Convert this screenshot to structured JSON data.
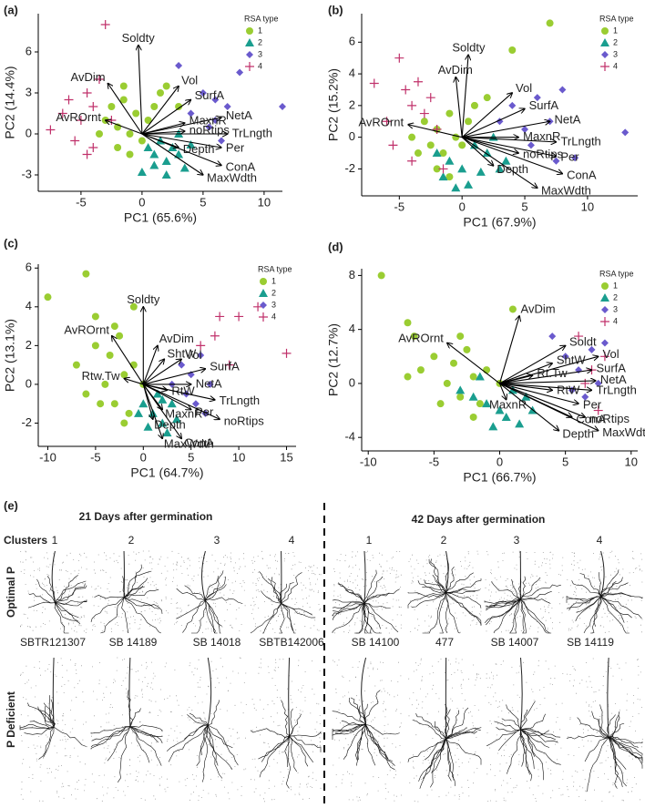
{
  "chart_data": [
    {
      "type": "biplot",
      "panel": "(a)",
      "xlabel": "PC1 (65.6%)",
      "ylabel": "PC2 (14.4%)",
      "legend_title": "RSA type",
      "xlim": [
        -8.5,
        11.5
      ],
      "ylim": [
        -4.2,
        8.8
      ],
      "xticks": [
        -5,
        0,
        5,
        10
      ],
      "yticks": [
        -3,
        0,
        3,
        6
      ],
      "series": [
        {
          "name": "1",
          "color": "#9acd32",
          "marker": "circle",
          "x": [
            -3,
            -2.5,
            -2,
            -1.5,
            -1,
            -0.5,
            0,
            0.5,
            1,
            1.5,
            -2,
            -1,
            2,
            3,
            -3.5,
            -1.5
          ],
          "values": [
            1,
            2,
            0.5,
            2.5,
            0,
            1.5,
            -0.5,
            1,
            2,
            3,
            -1,
            -1.5,
            3.5,
            2,
            0,
            3.5
          ]
        },
        {
          "name": "2",
          "color": "#1a9e8f",
          "marker": "triangle",
          "x": [
            0.5,
            1,
            1.5,
            2,
            2.5,
            3,
            3.5,
            4,
            1,
            2,
            0,
            3
          ],
          "values": [
            -1,
            -1.5,
            -0.5,
            -2,
            -1,
            -1.5,
            -2.5,
            -0.8,
            -2.3,
            -3,
            -2.8,
            0
          ]
        },
        {
          "name": "3",
          "color": "#6a5acd",
          "marker": "diamond",
          "x": [
            4,
            5,
            6,
            5.5,
            7,
            6.5,
            8,
            11.5,
            3,
            6
          ],
          "values": [
            1.5,
            3,
            2.5,
            0.5,
            2,
            -0.5,
            4.5,
            2,
            5,
            1
          ]
        },
        {
          "name": "4",
          "color": "#c0306a",
          "marker": "plus",
          "x": [
            -7.5,
            -6,
            -5,
            -4.5,
            -4,
            -3.5,
            -3,
            -5.5,
            -4,
            -6.5,
            -4.5,
            -2.5
          ],
          "values": [
            0.3,
            2.5,
            1,
            3,
            -1,
            4,
            8,
            -0.5,
            2,
            1.5,
            -1.5,
            1
          ]
        }
      ],
      "arrows": [
        {
          "label": "Soldty",
          "x": -0.3,
          "y": 6.5
        },
        {
          "label": "AvDim",
          "x": -2.8,
          "y": 3.7
        },
        {
          "label": "AvROrnt",
          "x": -3,
          "y": 1
        },
        {
          "label": "Vol",
          "x": 3,
          "y": 3.5
        },
        {
          "label": "SurfA",
          "x": 4,
          "y": 2.5
        },
        {
          "label": "NetA",
          "x": 6.5,
          "y": 1.2
        },
        {
          "label": "MaxnR",
          "x": 3.5,
          "y": 0.8
        },
        {
          "label": "TrLngth",
          "x": 7,
          "y": 0
        },
        {
          "label": "noRtips",
          "x": 3.5,
          "y": 0.2
        },
        {
          "label": "Per",
          "x": 6.5,
          "y": -1
        },
        {
          "label": "Depth",
          "x": 3,
          "y": -1
        },
        {
          "label": "ConA",
          "x": 6.5,
          "y": -2.3
        },
        {
          "label": "MaxWdth",
          "x": 5,
          "y": -3
        }
      ]
    },
    {
      "type": "biplot",
      "panel": "(b)",
      "xlabel": "PC1 (67.9%)",
      "ylabel": "PC2 (15.2%)",
      "legend_title": "RSA type",
      "xlim": [
        -8,
        14
      ],
      "ylim": [
        -3.7,
        7.8
      ],
      "xticks": [
        -5,
        0,
        5,
        10
      ],
      "yticks": [
        -2,
        0,
        2,
        4,
        6
      ],
      "series": [
        {
          "name": "1",
          "color": "#9acd32",
          "marker": "circle",
          "x": [
            -4,
            -3,
            -2.5,
            -2,
            -1.5,
            -1,
            -0.5,
            0,
            0.5,
            1,
            -3.5,
            -2,
            2,
            7,
            4,
            -1
          ],
          "values": [
            0,
            1,
            -0.5,
            0.5,
            -1,
            1.5,
            0,
            -0.5,
            1,
            2,
            -1,
            -2,
            2.5,
            7.2,
            5.5,
            -2.5
          ]
        },
        {
          "name": "2",
          "color": "#1a9e8f",
          "marker": "triangle",
          "x": [
            -2,
            -1,
            0,
            1,
            2,
            3,
            -1.5,
            0.5,
            1.5,
            -0.5,
            2.5,
            3.5
          ],
          "values": [
            -1,
            -1.5,
            -2,
            -0.5,
            -1,
            -2,
            -2.5,
            -3,
            -2.2,
            -3.2,
            0,
            -1.5
          ]
        },
        {
          "name": "3",
          "color": "#6a5acd",
          "marker": "diamond",
          "x": [
            3,
            4,
            5,
            6,
            7,
            8,
            13,
            5.5,
            9,
            7.5
          ],
          "values": [
            1,
            2,
            0.5,
            2.5,
            1,
            3,
            0.3,
            -0.5,
            -1.3,
            -1.5
          ]
        },
        {
          "name": "4",
          "color": "#c0306a",
          "marker": "plus",
          "x": [
            -7,
            -5,
            -4.5,
            -4,
            -3.5,
            -3,
            -2.5,
            -6,
            -5.5,
            -2,
            -4,
            -1.5
          ],
          "values": [
            3.4,
            5,
            3,
            2,
            3.5,
            1.5,
            2.5,
            1,
            -0.5,
            0.5,
            -1.5,
            -2
          ]
        }
      ],
      "arrows": [
        {
          "label": "Soldty",
          "x": 0.5,
          "y": 5.2
        },
        {
          "label": "AvDim",
          "x": -0.5,
          "y": 3.8
        },
        {
          "label": "AvROrnt",
          "x": -4.3,
          "y": 0.8
        },
        {
          "label": "Vol",
          "x": 4,
          "y": 2.8
        },
        {
          "label": "SurfA",
          "x": 5,
          "y": 1.8
        },
        {
          "label": "NetA",
          "x": 7,
          "y": 1
        },
        {
          "label": "MaxnR",
          "x": 4.5,
          "y": 0
        },
        {
          "label": "TrLngth",
          "x": 7.5,
          "y": -0.3
        },
        {
          "label": "noRtips",
          "x": 4.5,
          "y": -1
        },
        {
          "label": "Per",
          "x": 7.5,
          "y": -1.2
        },
        {
          "label": "Depth",
          "x": 2.5,
          "y": -1.8
        },
        {
          "label": "ConA",
          "x": 8,
          "y": -2.3
        },
        {
          "label": "MaxWdth",
          "x": 6,
          "y": -3.2
        }
      ]
    },
    {
      "type": "biplot",
      "panel": "(c)",
      "xlabel": "PC1 (64.7%)",
      "ylabel": "PC2 (13.1%)",
      "legend_title": "RSA type",
      "xlim": [
        -11,
        16
      ],
      "ylim": [
        -3.2,
        6.2
      ],
      "xticks": [
        -10,
        -5,
        0,
        5,
        10,
        15
      ],
      "yticks": [
        -2,
        0,
        2,
        4,
        6
      ],
      "series": [
        {
          "name": "1",
          "color": "#9acd32",
          "marker": "circle",
          "x": [
            -10,
            -6,
            -7,
            -5,
            -4,
            -3.5,
            -3,
            -2.5,
            -2,
            -1.5,
            -1,
            -4.5,
            -3,
            -2,
            0,
            -6,
            -5,
            -1
          ],
          "values": [
            4.5,
            5.7,
            1,
            2,
            0,
            1.5,
            -1,
            2.5,
            0.5,
            -1.5,
            1,
            -1,
            3,
            -2,
            0,
            -0.5,
            3.5,
            4
          ]
        },
        {
          "name": "2",
          "color": "#1a9e8f",
          "marker": "triangle",
          "x": [
            0,
            1,
            2,
            3,
            1.5,
            2.5,
            0.5,
            3.5,
            -0.5,
            2
          ],
          "values": [
            -1,
            -1.5,
            -2,
            -1,
            -0.5,
            -2.5,
            -2.2,
            -1.8,
            -1.5,
            -0.8
          ]
        },
        {
          "name": "3",
          "color": "#6a5acd",
          "marker": "diamond",
          "x": [
            3,
            4,
            5,
            6,
            7,
            5.5,
            4.5,
            6.5
          ],
          "values": [
            0,
            1,
            0.5,
            1.5,
            0,
            -1,
            -0.5,
            -1.5
          ]
        },
        {
          "name": "4",
          "color": "#c0306a",
          "marker": "plus",
          "x": [
            6,
            8,
            10,
            12,
            15,
            9,
            7.5
          ],
          "values": [
            2,
            3.5,
            3.5,
            4,
            1.6,
            1,
            2.5
          ]
        }
      ],
      "arrows": [
        {
          "label": "Soldty",
          "x": 0,
          "y": 4
        },
        {
          "label": "AvDim",
          "x": 1.5,
          "y": 2
        },
        {
          "label": "AvROrnt",
          "x": -3.3,
          "y": 2.5
        },
        {
          "label": "ShtW",
          "x": 2.2,
          "y": 1.3
        },
        {
          "label": "Vol",
          "x": 4,
          "y": 1.3
        },
        {
          "label": "SurfA",
          "x": 6.5,
          "y": 0.8
        },
        {
          "label": "Rtw.Tw",
          "x": -2,
          "y": 0.3
        },
        {
          "label": "RtW",
          "x": 2.5,
          "y": -0.3
        },
        {
          "label": "NetA",
          "x": 5,
          "y": 0
        },
        {
          "label": "TrLngth",
          "x": 7.5,
          "y": -0.8
        },
        {
          "label": "MaxnR",
          "x": 2,
          "y": -1.3
        },
        {
          "label": "Per",
          "x": 5,
          "y": -1.3
        },
        {
          "label": "noRtips",
          "x": 8,
          "y": -1.8
        },
        {
          "label": "Depth",
          "x": 1,
          "y": -1.8
        },
        {
          "label": "ConA",
          "x": 4,
          "y": -2.8
        },
        {
          "label": "MaxWdth",
          "x": 2,
          "y": -2.8
        }
      ]
    },
    {
      "type": "biplot",
      "panel": "(d)",
      "xlabel": "PC1 (66.7%)",
      "ylabel": "PC2 (12.7%)",
      "legend_title": "RSA type",
      "xlim": [
        -10.5,
        10.5
      ],
      "ylim": [
        -5,
        8.5
      ],
      "xticks": [
        -10,
        -5,
        0,
        5,
        10
      ],
      "yticks": [
        -4,
        0,
        4,
        8
      ],
      "series": [
        {
          "name": "1",
          "color": "#9acd32",
          "marker": "circle",
          "x": [
            -9,
            -7,
            -6,
            -5,
            -4,
            -3.5,
            -3,
            -2.5,
            -2,
            -1.5,
            -1,
            -4.5,
            -6.5,
            -2,
            0,
            1,
            -7,
            -3
          ],
          "values": [
            8,
            4.5,
            1,
            2,
            0,
            1.5,
            -1,
            2.5,
            0.5,
            -1.5,
            1,
            -1.5,
            3.5,
            -2.5,
            0,
            5.5,
            0.5,
            3.5
          ]
        },
        {
          "name": "2",
          "color": "#1a9e8f",
          "marker": "triangle",
          "x": [
            -2,
            -1,
            0,
            1,
            2,
            -1.5,
            0.5,
            1.5,
            -3,
            -0.5,
            2.5
          ],
          "values": [
            -1,
            -1.5,
            -2,
            -0.5,
            -1,
            0.5,
            -2.5,
            -3,
            -0.5,
            -3.2,
            -2
          ]
        },
        {
          "name": "3",
          "color": "#6a5acd",
          "marker": "diamond",
          "x": [
            4,
            5,
            6,
            7,
            8,
            6.5,
            5.5,
            7.5
          ],
          "values": [
            3.5,
            2,
            1,
            2.5,
            3,
            -1,
            -0.5,
            0
          ]
        },
        {
          "name": "4",
          "color": "#c0306a",
          "marker": "plus",
          "x": [
            6,
            7,
            8,
            7.5,
            6.5
          ],
          "values": [
            3.5,
            1,
            2,
            -2,
            0
          ]
        }
      ],
      "arrows": [
        {
          "label": "AvDim",
          "x": 1.5,
          "y": 5
        },
        {
          "label": "Soldt",
          "x": 5,
          "y": 2.8
        },
        {
          "label": "AvROrnt",
          "x": -4,
          "y": 3
        },
        {
          "label": "ShtW",
          "x": 4,
          "y": 1.5
        },
        {
          "label": "Vol",
          "x": 7.5,
          "y": 2
        },
        {
          "label": "SurfA",
          "x": 7,
          "y": 1
        },
        {
          "label": "Rt.Tw",
          "x": 2.5,
          "y": 0.6
        },
        {
          "label": "NetA",
          "x": 7.3,
          "y": 0.2
        },
        {
          "label": "RtW",
          "x": 4,
          "y": -0.5
        },
        {
          "label": "TrLngth",
          "x": 7,
          "y": -0.5
        },
        {
          "label": "MaxnR",
          "x": 0.5,
          "y": -1.2
        },
        {
          "label": "Per",
          "x": 6,
          "y": -1.5
        },
        {
          "label": "ConA",
          "x": 5.5,
          "y": -2.5
        },
        {
          "label": "noRtips",
          "x": 6.5,
          "y": -2.5
        },
        {
          "label": "Depth",
          "x": 4.5,
          "y": -3.5
        },
        {
          "label": "MaxWdth",
          "x": 7.5,
          "y": -3.5
        }
      ]
    }
  ],
  "panel_e": {
    "label": "(e)",
    "left_title": "21 Days after germination",
    "right_title": "42 Days after germination",
    "clusters_label": "Clusters",
    "clusters_left": [
      "1",
      "2",
      "3",
      "4"
    ],
    "clusters_right": [
      "1",
      "2",
      "3",
      "4"
    ],
    "row_labels": [
      "Optimal P",
      "P Deficient"
    ],
    "genotypes_left": [
      "SBTR121307",
      "SB 14189",
      "SB 14018",
      "SBTB142006"
    ],
    "genotypes_right": [
      "SB 14100",
      "477",
      "SB 14007",
      "SB 14119"
    ]
  }
}
